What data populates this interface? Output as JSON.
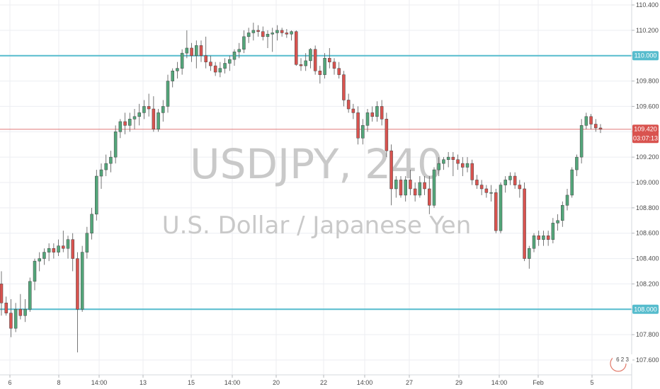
{
  "watermark": {
    "symbol": "USDJPY, 240",
    "name": "U.S. Dollar / Japanese Yen"
  },
  "price_badge": {
    "price": "109.420",
    "countdown": "03:07:13"
  },
  "level_badges": {
    "upper": "110.000",
    "lower": "108.000"
  },
  "logo_text": "6 2 3",
  "colors": {
    "up": "#53a67a",
    "down": "#d9534f",
    "hline": "#56bccd",
    "price_line": "#e07a7a",
    "grid": "#eceef2"
  },
  "chart_data": {
    "type": "candlestick",
    "ylim": [
      107.54,
      110.45
    ],
    "y_ticks": [
      "107.600",
      "107.800",
      "108.000",
      "108.200",
      "108.400",
      "108.600",
      "108.800",
      "109.000",
      "109.200",
      "109.400",
      "109.600",
      "109.800",
      "110.000",
      "110.200",
      "110.400"
    ],
    "x_ticks": [
      "6",
      "8",
      "14:00",
      "13",
      "15",
      "14:00",
      "20",
      "22",
      "14:00",
      "27",
      "29",
      "14:00",
      "Feb",
      "5"
    ],
    "horizontal_lines": [
      110.0,
      108.0
    ],
    "current_price": 109.42,
    "candles": [
      [
        108.2,
        108.3,
        107.95,
        108.05
      ],
      [
        108.05,
        108.1,
        107.95,
        107.97
      ],
      [
        107.97,
        108.08,
        107.78,
        107.85
      ],
      [
        107.85,
        108.05,
        107.82,
        108.0
      ],
      [
        108.0,
        108.12,
        107.92,
        107.95
      ],
      [
        107.95,
        108.08,
        107.9,
        108.0
      ],
      [
        108.0,
        108.25,
        107.98,
        108.22
      ],
      [
        108.22,
        108.4,
        108.15,
        108.38
      ],
      [
        108.38,
        108.45,
        108.3,
        108.4
      ],
      [
        108.4,
        108.48,
        108.35,
        108.45
      ],
      [
        108.45,
        108.52,
        108.38,
        108.48
      ],
      [
        108.48,
        108.52,
        108.4,
        108.45
      ],
      [
        108.45,
        108.55,
        108.42,
        108.5
      ],
      [
        108.5,
        108.62,
        108.45,
        108.48
      ],
      [
        108.48,
        108.58,
        108.4,
        108.55
      ],
      [
        108.55,
        108.6,
        108.3,
        108.4
      ],
      [
        108.4,
        108.45,
        107.66,
        108.0
      ],
      [
        108.0,
        108.5,
        107.98,
        108.45
      ],
      [
        108.45,
        108.65,
        108.4,
        108.6
      ],
      [
        108.6,
        108.8,
        108.55,
        108.75
      ],
      [
        108.75,
        109.1,
        108.7,
        109.05
      ],
      [
        109.05,
        109.15,
        108.95,
        109.1
      ],
      [
        109.1,
        109.22,
        109.05,
        109.15
      ],
      [
        109.15,
        109.25,
        109.08,
        109.2
      ],
      [
        109.2,
        109.45,
        109.15,
        109.4
      ],
      [
        109.4,
        109.5,
        109.35,
        109.48
      ],
      [
        109.48,
        109.55,
        109.38,
        109.45
      ],
      [
        109.45,
        109.55,
        109.4,
        109.5
      ],
      [
        109.5,
        109.58,
        109.42,
        109.52
      ],
      [
        109.52,
        109.62,
        109.45,
        109.55
      ],
      [
        109.55,
        109.65,
        109.5,
        109.6
      ],
      [
        109.6,
        109.7,
        109.52,
        109.58
      ],
      [
        109.58,
        109.68,
        109.4,
        109.42
      ],
      [
        109.42,
        109.58,
        109.4,
        109.55
      ],
      [
        109.55,
        109.65,
        109.48,
        109.6
      ],
      [
        109.6,
        109.85,
        109.55,
        109.8
      ],
      [
        109.8,
        109.9,
        109.75,
        109.88
      ],
      [
        109.88,
        109.95,
        109.82,
        109.9
      ],
      [
        109.9,
        110.05,
        109.85,
        110.02
      ],
      [
        110.02,
        110.2,
        109.98,
        110.06
      ],
      [
        110.06,
        110.1,
        109.95,
        110.0
      ],
      [
        110.0,
        110.12,
        109.9,
        110.08
      ],
      [
        110.08,
        110.12,
        109.95,
        110.0
      ],
      [
        110.0,
        110.15,
        109.9,
        109.95
      ],
      [
        109.95,
        110.0,
        109.88,
        109.92
      ],
      [
        109.92,
        109.95,
        109.84,
        109.87
      ],
      [
        109.87,
        109.95,
        109.83,
        109.9
      ],
      [
        109.9,
        109.98,
        109.86,
        109.94
      ],
      [
        109.94,
        110.0,
        109.88,
        109.97
      ],
      [
        109.97,
        110.05,
        109.92,
        110.03
      ],
      [
        110.03,
        110.1,
        109.98,
        110.05
      ],
      [
        110.05,
        110.2,
        110.02,
        110.15
      ],
      [
        110.15,
        110.22,
        110.1,
        110.18
      ],
      [
        110.18,
        110.26,
        110.12,
        110.2
      ],
      [
        110.2,
        110.24,
        110.15,
        110.19
      ],
      [
        110.19,
        110.23,
        110.12,
        110.15
      ],
      [
        110.15,
        110.2,
        110.06,
        110.17
      ],
      [
        110.17,
        110.22,
        110.03,
        110.18
      ],
      [
        110.18,
        110.24,
        110.12,
        110.2
      ],
      [
        110.2,
        110.22,
        110.15,
        110.18
      ],
      [
        110.18,
        110.21,
        110.14,
        110.17
      ],
      [
        110.17,
        110.2,
        110.12,
        110.19
      ],
      [
        110.19,
        110.2,
        109.92,
        109.93
      ],
      [
        109.93,
        109.98,
        109.88,
        109.92
      ],
      [
        109.92,
        110.02,
        109.88,
        109.96
      ],
      [
        109.96,
        110.06,
        109.9,
        110.05
      ],
      [
        110.05,
        110.08,
        109.85,
        109.88
      ],
      [
        109.88,
        109.92,
        109.78,
        109.85
      ],
      [
        109.85,
        110.02,
        109.82,
        109.98
      ],
      [
        109.98,
        110.06,
        109.9,
        109.95
      ],
      [
        109.95,
        109.98,
        109.85,
        109.9
      ],
      [
        109.9,
        109.95,
        109.82,
        109.85
      ],
      [
        109.85,
        109.88,
        109.6,
        109.65
      ],
      [
        109.65,
        109.7,
        109.55,
        109.58
      ],
      [
        109.58,
        109.62,
        109.5,
        109.55
      ],
      [
        109.55,
        109.6,
        109.3,
        109.35
      ],
      [
        109.35,
        109.5,
        109.3,
        109.45
      ],
      [
        109.45,
        109.58,
        109.4,
        109.55
      ],
      [
        109.55,
        109.6,
        109.48,
        109.52
      ],
      [
        109.52,
        109.64,
        109.48,
        109.6
      ],
      [
        109.6,
        109.65,
        109.45,
        109.5
      ],
      [
        109.5,
        109.55,
        109.2,
        109.25
      ],
      [
        109.25,
        109.3,
        108.82,
        108.95
      ],
      [
        108.95,
        109.05,
        108.88,
        109.02
      ],
      [
        109.02,
        109.05,
        108.88,
        108.9
      ],
      [
        108.9,
        109.05,
        108.85,
        109.02
      ],
      [
        109.02,
        109.1,
        108.9,
        108.95
      ],
      [
        108.95,
        109.0,
        108.85,
        108.9
      ],
      [
        108.9,
        109.05,
        108.88,
        109.0
      ],
      [
        109.0,
        109.05,
        108.9,
        108.95
      ],
      [
        108.95,
        109.05,
        108.75,
        108.82
      ],
      [
        108.82,
        109.12,
        108.8,
        109.1
      ],
      [
        109.1,
        109.2,
        109.05,
        109.15
      ],
      [
        109.15,
        109.2,
        109.1,
        109.18
      ],
      [
        109.18,
        109.24,
        109.12,
        109.2
      ],
      [
        109.2,
        109.24,
        109.05,
        109.18
      ],
      [
        109.18,
        109.22,
        109.1,
        109.15
      ],
      [
        109.15,
        109.2,
        109.05,
        109.12
      ],
      [
        109.12,
        109.2,
        109.08,
        109.15
      ],
      [
        109.15,
        109.18,
        108.98,
        109.02
      ],
      [
        109.02,
        109.06,
        108.95,
        108.98
      ],
      [
        108.98,
        109.02,
        108.9,
        108.95
      ],
      [
        108.95,
        108.98,
        108.88,
        108.92
      ],
      [
        108.92,
        108.98,
        108.85,
        108.92
      ],
      [
        108.92,
        108.95,
        108.6,
        108.62
      ],
      [
        108.62,
        109.0,
        108.6,
        108.98
      ],
      [
        108.98,
        109.05,
        108.92,
        109.02
      ],
      [
        109.02,
        109.08,
        108.98,
        109.05
      ],
      [
        109.05,
        109.08,
        108.95,
        108.98
      ],
      [
        108.98,
        109.02,
        108.88,
        108.95
      ],
      [
        108.95,
        109.0,
        108.38,
        108.4
      ],
      [
        108.4,
        108.5,
        108.32,
        108.48
      ],
      [
        108.48,
        108.6,
        108.45,
        108.58
      ],
      [
        108.58,
        108.62,
        108.5,
        108.55
      ],
      [
        108.55,
        108.62,
        108.5,
        108.58
      ],
      [
        108.58,
        108.62,
        108.5,
        108.55
      ],
      [
        108.55,
        108.72,
        108.52,
        108.68
      ],
      [
        108.68,
        108.75,
        108.62,
        108.7
      ],
      [
        108.7,
        108.85,
        108.65,
        108.82
      ],
      [
        108.82,
        108.95,
        108.78,
        108.9
      ],
      [
        108.9,
        109.12,
        108.88,
        109.1
      ],
      [
        109.1,
        109.22,
        109.05,
        109.2
      ],
      [
        109.2,
        109.5,
        109.15,
        109.45
      ],
      [
        109.45,
        109.55,
        109.42,
        109.52
      ],
      [
        109.52,
        109.54,
        109.42,
        109.46
      ],
      [
        109.46,
        109.5,
        109.4,
        109.43
      ],
      [
        109.43,
        109.46,
        109.39,
        109.42
      ]
    ]
  }
}
